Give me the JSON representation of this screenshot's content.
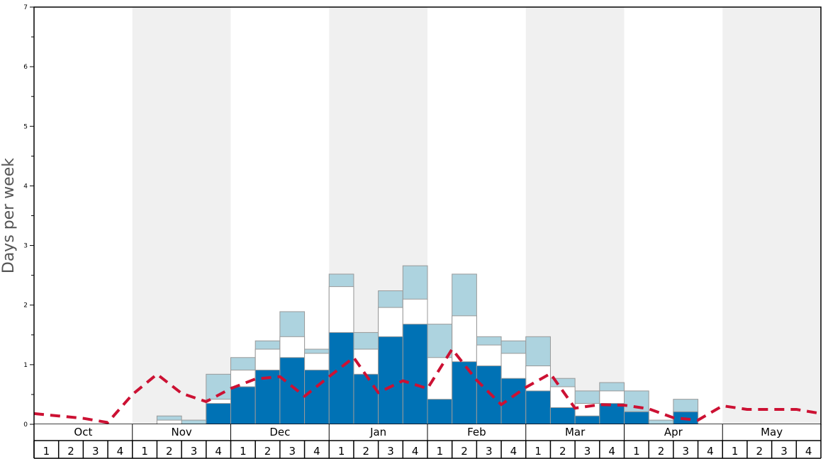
{
  "chart_data": {
    "type": "bar",
    "ylabel": "Days per week",
    "ylim": [
      0,
      7
    ],
    "yticks": [
      "0",
      "1",
      "2",
      "3",
      "4",
      "5",
      "6",
      "7"
    ],
    "months": [
      "Oct",
      "Nov",
      "Dec",
      "Jan",
      "Feb",
      "Mar",
      "Apr",
      "May"
    ],
    "week_labels": [
      "1",
      "2",
      "3",
      "4"
    ],
    "stacking": "overlaid",
    "series": [
      {
        "color": "#add3df",
        "values": [
          0,
          0,
          0,
          0,
          0,
          0.14,
          0.07,
          0.84,
          1.12,
          1.4,
          1.89,
          1.26,
          2.52,
          1.54,
          2.24,
          2.66,
          1.68,
          2.52,
          1.47,
          1.4,
          1.47,
          0.77,
          0.56,
          0.7,
          0.56,
          0.07,
          0.42,
          0,
          0,
          0,
          0,
          0
        ]
      },
      {
        "color": "#ffffff",
        "values": [
          0,
          0,
          0,
          0,
          0,
          0.07,
          0,
          0.42,
          0.91,
          1.26,
          1.47,
          1.19,
          2.31,
          1.26,
          1.96,
          2.1,
          1.12,
          1.82,
          1.33,
          1.19,
          0.98,
          0.63,
          0.35,
          0.56,
          0.21,
          0,
          0.21,
          0,
          0,
          0,
          0,
          0
        ]
      },
      {
        "color": "#0072b5",
        "values": [
          0,
          0,
          0,
          0,
          0,
          0,
          0,
          0.35,
          0.63,
          0.91,
          1.12,
          0.91,
          1.54,
          0.84,
          1.47,
          1.68,
          0.42,
          1.05,
          0.98,
          0.77,
          0.56,
          0.28,
          0.14,
          0.35,
          0.21,
          0,
          0.21,
          0,
          0,
          0,
          0,
          0
        ]
      }
    ],
    "line": {
      "color": "#cc1133",
      "style": "dashed",
      "values": [
        0.18,
        0.14,
        0.1,
        0.03,
        0.5,
        0.84,
        0.52,
        0.38,
        0.6,
        0.76,
        0.8,
        0.47,
        0.8,
        1.12,
        0.53,
        0.73,
        0.6,
        1.26,
        0.74,
        0.33,
        0.62,
        0.85,
        0.27,
        0.33,
        0.32,
        0.26,
        0.11,
        0.07,
        0.31,
        0.25,
        0.25,
        0.25,
        0.18
      ]
    },
    "shaded_months": [
      "Nov",
      "Jan",
      "Mar",
      "May"
    ],
    "shade_color": "#f0f0f0",
    "grid": false
  }
}
